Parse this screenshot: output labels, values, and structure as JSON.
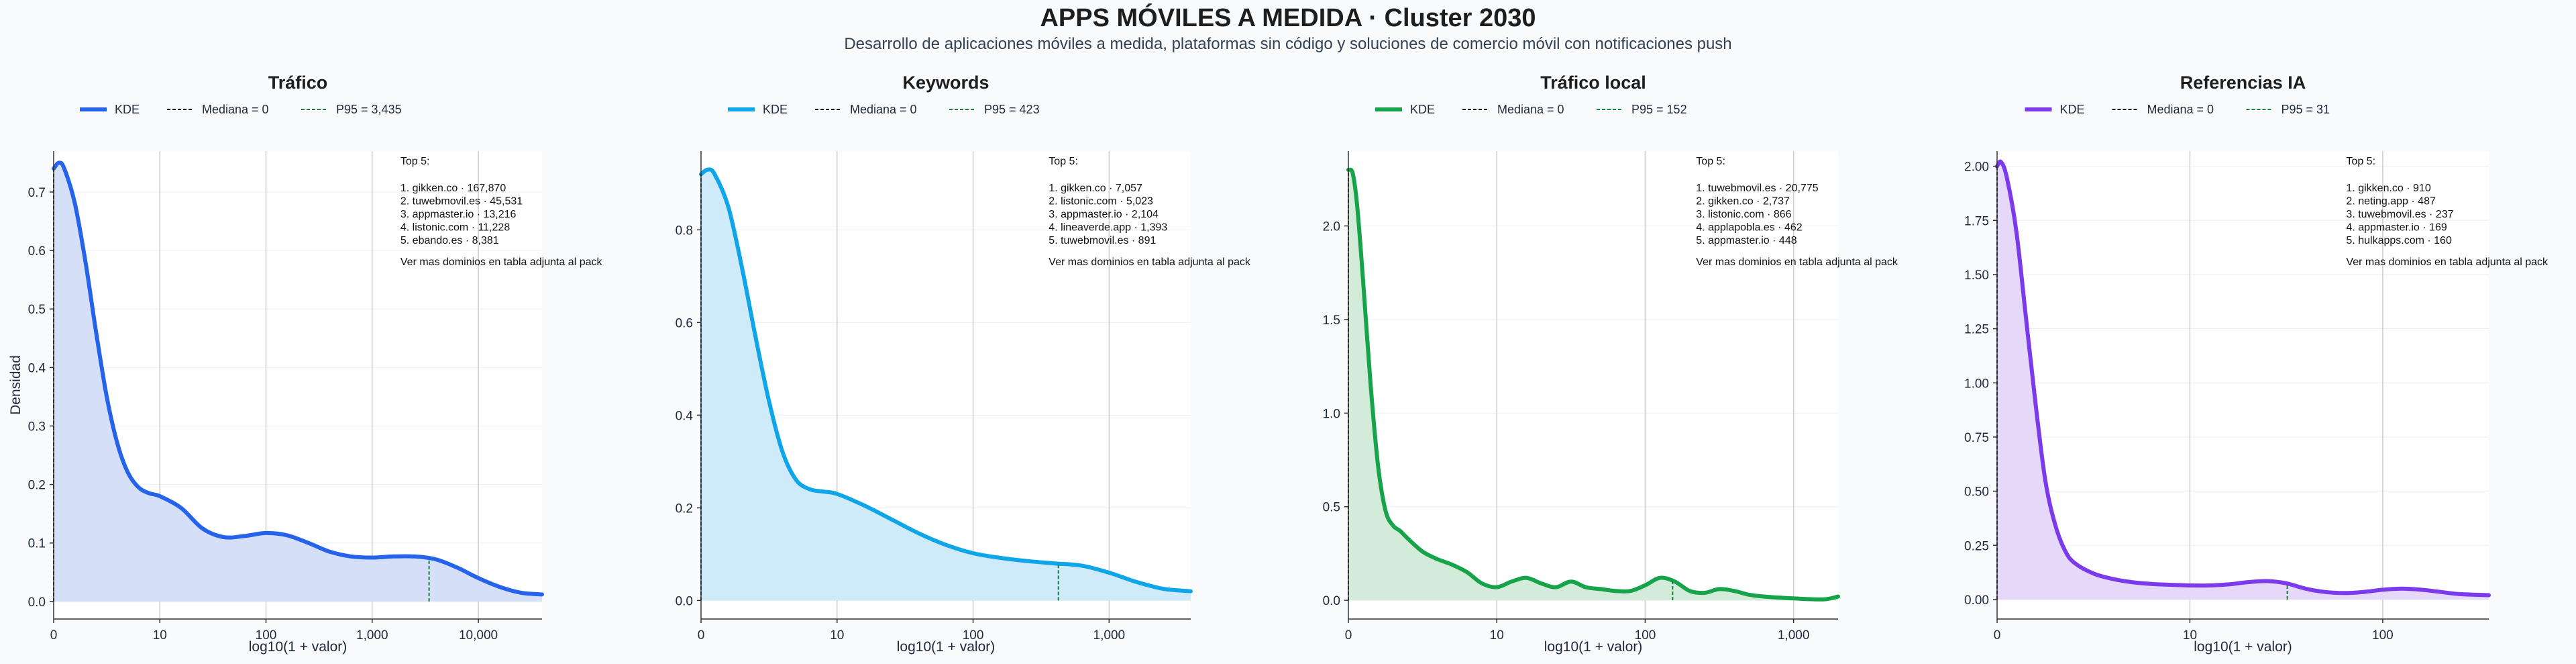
{
  "title": "APPS MÓVILES A MEDIDA · Cluster 2030",
  "subtitle": "Desarrollo de aplicaciones móviles a medida, plataformas sin código y soluciones de comercio móvil con notificaciones push",
  "colors": {
    "median": "#111111",
    "p95": "#15803d",
    "grid": "#cccccc"
  },
  "chart_data": [
    {
      "type": "area",
      "title": "Tráfico",
      "color": "#2563eb",
      "fill": "#d5e0f8",
      "xlabel": "log10(1 + valor)",
      "ylabel": "Densidad",
      "xlim": [
        0,
        4.6
      ],
      "ylim": [
        -0.03,
        0.77
      ],
      "xticks": [
        {
          "v": 0,
          "label": "0"
        },
        {
          "v": 1,
          "label": "10"
        },
        {
          "v": 2,
          "label": "100"
        },
        {
          "v": 3,
          "label": "1,000"
        },
        {
          "v": 4,
          "label": "10,000"
        }
      ],
      "yticks": [
        {
          "v": 0,
          "label": "0.0"
        },
        {
          "v": 0.1,
          "label": "0.1"
        },
        {
          "v": 0.2,
          "label": "0.2"
        },
        {
          "v": 0.3,
          "label": "0.3"
        },
        {
          "v": 0.4,
          "label": "0.4"
        },
        {
          "v": 0.5,
          "label": "0.5"
        },
        {
          "v": 0.6,
          "label": "0.6"
        },
        {
          "v": 0.7,
          "label": "0.7"
        }
      ],
      "x": [
        0,
        0.05,
        0.1,
        0.2,
        0.3,
        0.4,
        0.5,
        0.6,
        0.7,
        0.8,
        0.9,
        1.0,
        1.2,
        1.4,
        1.6,
        1.8,
        2.0,
        2.2,
        2.4,
        2.6,
        2.8,
        3.0,
        3.2,
        3.4,
        3.6,
        3.8,
        4.0,
        4.2,
        4.4,
        4.6
      ],
      "y": [
        0.74,
        0.75,
        0.74,
        0.68,
        0.58,
        0.46,
        0.35,
        0.27,
        0.22,
        0.195,
        0.185,
        0.18,
        0.16,
        0.125,
        0.11,
        0.112,
        0.117,
        0.113,
        0.1,
        0.085,
        0.077,
        0.075,
        0.077,
        0.077,
        0.072,
        0.058,
        0.04,
        0.025,
        0.015,
        0.012
      ],
      "median_x": 0,
      "p95_x": 3.536,
      "legend": {
        "kde": "KDE",
        "median": "Mediana = 0",
        "p95": "P95 = 3,435"
      },
      "top5_title": "Top 5:",
      "top5": [
        "1. gikken.co · 167,870",
        "2. tuwebmovil.es · 45,531",
        "3. appmaster.io · 13,216",
        "4. listonic.com · 11,228",
        "5. ebando.es · 8,381"
      ],
      "footnote": "Ver mas dominios en tabla adjunta al pack"
    },
    {
      "type": "area",
      "title": "Keywords",
      "color": "#0ea5e9",
      "fill": "#cfeaf8",
      "xlabel": "log10(1 + valor)",
      "ylabel": "",
      "xlim": [
        0,
        3.6
      ],
      "ylim": [
        -0.04,
        0.97
      ],
      "xticks": [
        {
          "v": 0,
          "label": "0"
        },
        {
          "v": 1,
          "label": "10"
        },
        {
          "v": 2,
          "label": "100"
        },
        {
          "v": 3,
          "label": "1,000"
        }
      ],
      "yticks": [
        {
          "v": 0,
          "label": "0.0"
        },
        {
          "v": 0.2,
          "label": "0.2"
        },
        {
          "v": 0.4,
          "label": "0.4"
        },
        {
          "v": 0.6,
          "label": "0.6"
        },
        {
          "v": 0.8,
          "label": "0.8"
        }
      ],
      "x": [
        0,
        0.05,
        0.1,
        0.2,
        0.3,
        0.4,
        0.5,
        0.6,
        0.7,
        0.8,
        0.9,
        1.0,
        1.2,
        1.4,
        1.6,
        1.8,
        2.0,
        2.2,
        2.4,
        2.6,
        2.8,
        3.0,
        3.2,
        3.4,
        3.6
      ],
      "y": [
        0.92,
        0.93,
        0.92,
        0.85,
        0.72,
        0.57,
        0.43,
        0.32,
        0.26,
        0.24,
        0.235,
        0.23,
        0.205,
        0.175,
        0.145,
        0.12,
        0.102,
        0.092,
        0.085,
        0.08,
        0.075,
        0.06,
        0.04,
        0.025,
        0.02
      ],
      "median_x": 0,
      "p95_x": 2.627,
      "legend": {
        "kde": "KDE",
        "median": "Mediana = 0",
        "p95": "P95 = 423"
      },
      "top5_title": "Top 5:",
      "top5": [
        "1. gikken.co · 7,057",
        "2. listonic.com · 5,023",
        "3. appmaster.io · 2,104",
        "4. lineaverde.app · 1,393",
        "5. tuwebmovil.es · 891"
      ],
      "footnote": "Ver mas dominios en tabla adjunta al pack"
    },
    {
      "type": "area",
      "title": "Tráfico local",
      "color": "#16a34a",
      "fill": "#d2ecd9",
      "xlabel": "log10(1 + valor)",
      "ylabel": "",
      "xlim": [
        0,
        3.3
      ],
      "ylim": [
        -0.1,
        2.4
      ],
      "xticks": [
        {
          "v": 0,
          "label": "0"
        },
        {
          "v": 1,
          "label": "10"
        },
        {
          "v": 2,
          "label": "100"
        },
        {
          "v": 3,
          "label": "1,000"
        }
      ],
      "yticks": [
        {
          "v": 0,
          "label": "0.0"
        },
        {
          "v": 0.5,
          "label": "0.5"
        },
        {
          "v": 1.0,
          "label": "1.0"
        },
        {
          "v": 1.5,
          "label": "1.5"
        },
        {
          "v": 2.0,
          "label": "2.0"
        }
      ],
      "x": [
        0,
        0.03,
        0.06,
        0.1,
        0.15,
        0.2,
        0.25,
        0.3,
        0.35,
        0.4,
        0.5,
        0.6,
        0.7,
        0.8,
        0.9,
        1.0,
        1.1,
        1.2,
        1.3,
        1.4,
        1.5,
        1.6,
        1.7,
        1.8,
        1.9,
        2.0,
        2.1,
        2.2,
        2.3,
        2.4,
        2.5,
        2.6,
        2.7,
        2.8,
        3.0,
        3.2,
        3.3
      ],
      "y": [
        2.3,
        2.28,
        2.1,
        1.7,
        1.15,
        0.72,
        0.48,
        0.4,
        0.37,
        0.33,
        0.26,
        0.22,
        0.19,
        0.15,
        0.09,
        0.07,
        0.1,
        0.12,
        0.09,
        0.07,
        0.1,
        0.07,
        0.06,
        0.05,
        0.05,
        0.08,
        0.12,
        0.1,
        0.05,
        0.04,
        0.06,
        0.05,
        0.03,
        0.02,
        0.01,
        0.005,
        0.02
      ],
      "median_x": 0,
      "p95_x": 2.185,
      "legend": {
        "kde": "KDE",
        "median": "Mediana = 0",
        "p95": "P95 = 152"
      },
      "top5_title": "Top 5:",
      "top5": [
        "1. tuwebmovil.es · 20,775",
        "2. gikken.co · 2,737",
        "3. listonic.com · 866",
        "4. applapobla.es · 462",
        "5. appmaster.io · 448"
      ],
      "footnote": "Ver mas dominios en tabla adjunta al pack"
    },
    {
      "type": "area",
      "title": "Referencias IA",
      "color": "#7c3aed",
      "fill": "#e5d8f8",
      "xlabel": "log10(1 + valor)",
      "ylabel": "",
      "xlim": [
        0,
        2.55
      ],
      "ylim": [
        -0.09,
        2.07
      ],
      "xticks": [
        {
          "v": 0,
          "label": "0"
        },
        {
          "v": 1,
          "label": "10"
        },
        {
          "v": 2,
          "label": "100"
        }
      ],
      "yticks": [
        {
          "v": 0,
          "label": "0.00"
        },
        {
          "v": 0.25,
          "label": "0.25"
        },
        {
          "v": 0.5,
          "label": "0.50"
        },
        {
          "v": 0.75,
          "label": "0.75"
        },
        {
          "v": 1.0,
          "label": "1.00"
        },
        {
          "v": 1.25,
          "label": "1.25"
        },
        {
          "v": 1.5,
          "label": "1.50"
        },
        {
          "v": 1.75,
          "label": "1.75"
        },
        {
          "v": 2.0,
          "label": "2.00"
        }
      ],
      "x": [
        0,
        0.02,
        0.05,
        0.1,
        0.15,
        0.2,
        0.25,
        0.3,
        0.35,
        0.4,
        0.5,
        0.6,
        0.7,
        0.8,
        0.9,
        1.0,
        1.1,
        1.2,
        1.3,
        1.4,
        1.5,
        1.6,
        1.7,
        1.8,
        1.9,
        2.0,
        2.1,
        2.2,
        2.3,
        2.4,
        2.55
      ],
      "y": [
        2.0,
        2.02,
        1.95,
        1.7,
        1.3,
        0.9,
        0.55,
        0.35,
        0.23,
        0.17,
        0.12,
        0.095,
        0.08,
        0.072,
        0.068,
        0.065,
        0.065,
        0.07,
        0.08,
        0.085,
        0.075,
        0.05,
        0.035,
        0.03,
        0.035,
        0.045,
        0.05,
        0.045,
        0.035,
        0.025,
        0.02
      ],
      "median_x": 0,
      "p95_x": 1.505,
      "legend": {
        "kde": "KDE",
        "median": "Mediana = 0",
        "p95": "P95 = 31"
      },
      "top5_title": "Top 5:",
      "top5": [
        "1. gikken.co · 910",
        "2. neting.app · 487",
        "3. tuwebmovil.es · 237",
        "4. appmaster.io · 169",
        "5. hulkapps.com · 160"
      ],
      "footnote": "Ver mas dominios en tabla adjunta al pack"
    }
  ]
}
